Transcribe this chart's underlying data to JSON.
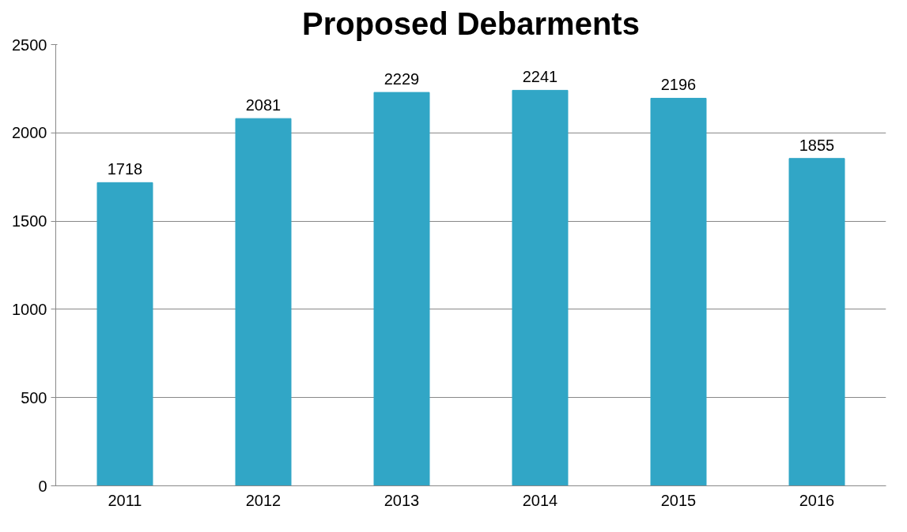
{
  "chart_data": {
    "type": "bar",
    "title": "Proposed Debarments",
    "categories": [
      "2011",
      "2012",
      "2013",
      "2014",
      "2015",
      "2016"
    ],
    "values": [
      1718,
      2081,
      2229,
      2241,
      2196,
      1855
    ],
    "color": "#31a6c6",
    "ylim": [
      0,
      2500
    ],
    "yticks": [
      0,
      500,
      1000,
      1500,
      2000,
      2500
    ],
    "grid": "y",
    "data_labels": true
  }
}
